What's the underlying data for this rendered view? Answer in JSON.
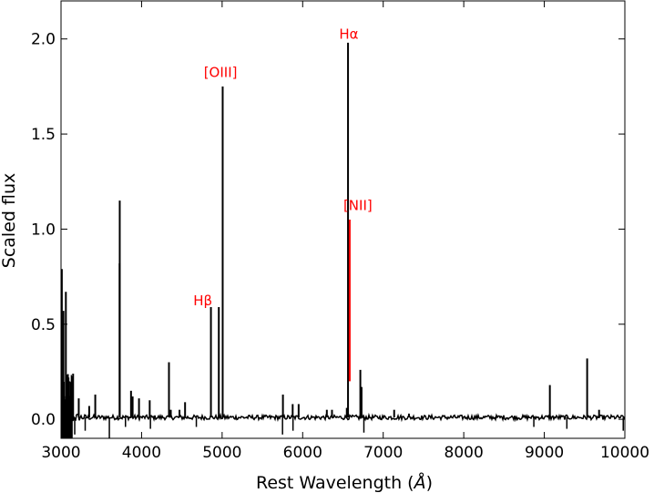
{
  "chart_data": {
    "type": "line",
    "title": "",
    "xlabel": "Rest Wavelength",
    "xlabel_unit": "Å",
    "ylabel": "Scaled flux",
    "xlim": [
      3000,
      10000
    ],
    "ylim": [
      -0.1,
      2.2
    ],
    "x_ticks": [
      3000,
      4000,
      5000,
      6000,
      7000,
      8000,
      9000,
      10000
    ],
    "y_ticks": [
      0.0,
      0.5,
      1.0,
      1.5,
      2.0
    ],
    "x_tick_labels": [
      "3000",
      "4000",
      "5000",
      "6000",
      "7000",
      "8000",
      "9000",
      "10000"
    ],
    "y_tick_labels": [
      "0.0",
      "0.5",
      "1.0",
      "1.5",
      "2.0"
    ],
    "grid": false,
    "legend": "none",
    "series": [
      {
        "color": "#000000",
        "continuum": 0.01,
        "noise_level": 0.012,
        "emission_lines": [
          {
            "x": 3010,
            "y": 0.79
          },
          {
            "x": 3030,
            "y": 0.57
          },
          {
            "x": 3060,
            "y": 0.67
          },
          {
            "x": 3150,
            "y": 0.24
          },
          {
            "x": 3220,
            "y": 0.11
          },
          {
            "x": 3350,
            "y": 0.07
          },
          {
            "x": 3425,
            "y": 0.13
          },
          {
            "x": 3727,
            "y": 0.82
          },
          {
            "x": 3729,
            "y": 1.15
          },
          {
            "x": 3869,
            "y": 0.15
          },
          {
            "x": 3889,
            "y": 0.12
          },
          {
            "x": 3968,
            "y": 0.11
          },
          {
            "x": 4101,
            "y": 0.1
          },
          {
            "x": 4340,
            "y": 0.3
          },
          {
            "x": 4363,
            "y": 0.05
          },
          {
            "x": 4471,
            "y": 0.05
          },
          {
            "x": 4540,
            "y": 0.09
          },
          {
            "x": 4861,
            "y": 0.59
          },
          {
            "x": 4959,
            "y": 0.59
          },
          {
            "x": 5007,
            "y": 1.75
          },
          {
            "x": 5755,
            "y": 0.13
          },
          {
            "x": 5876,
            "y": 0.08
          },
          {
            "x": 5950,
            "y": 0.08
          },
          {
            "x": 6300,
            "y": 0.05
          },
          {
            "x": 6364,
            "y": 0.05
          },
          {
            "x": 6548,
            "y": 0.06
          },
          {
            "x": 6563,
            "y": 1.98
          },
          {
            "x": 6716,
            "y": 0.26
          },
          {
            "x": 6731,
            "y": 0.17
          },
          {
            "x": 7136,
            "y": 0.05
          },
          {
            "x": 7320,
            "y": 0.03
          },
          {
            "x": 9069,
            "y": 0.18
          },
          {
            "x": 9532,
            "y": 0.32
          },
          {
            "x": 9680,
            "y": 0.05
          }
        ],
        "absorption_dips": [
          {
            "x": 3050,
            "y": -0.12
          },
          {
            "x": 3110,
            "y": -0.1
          },
          {
            "x": 3170,
            "y": -0.08
          },
          {
            "x": 3300,
            "y": -0.06
          },
          {
            "x": 3600,
            "y": -0.1
          },
          {
            "x": 3800,
            "y": -0.04
          },
          {
            "x": 4110,
            "y": -0.05
          },
          {
            "x": 4680,
            "y": -0.04
          },
          {
            "x": 5750,
            "y": -0.08
          },
          {
            "x": 5880,
            "y": -0.06
          },
          {
            "x": 6760,
            "y": -0.07
          },
          {
            "x": 8870,
            "y": -0.04
          },
          {
            "x": 9280,
            "y": -0.05
          },
          {
            "x": 9980,
            "y": -0.06
          }
        ]
      },
      {
        "name": "[NII]",
        "color": "#ff0000",
        "lines": [
          {
            "x": 6584,
            "y": 1.05
          }
        ]
      }
    ],
    "annotations": [
      {
        "text": "[OIII]",
        "x": 4980,
        "y": 1.8
      },
      {
        "text": "Hα",
        "x": 6573,
        "y": 2.0
      },
      {
        "text": "[NII]",
        "x": 6685,
        "y": 1.1
      },
      {
        "text": "Hβ",
        "x": 4760,
        "y": 0.6
      }
    ]
  }
}
